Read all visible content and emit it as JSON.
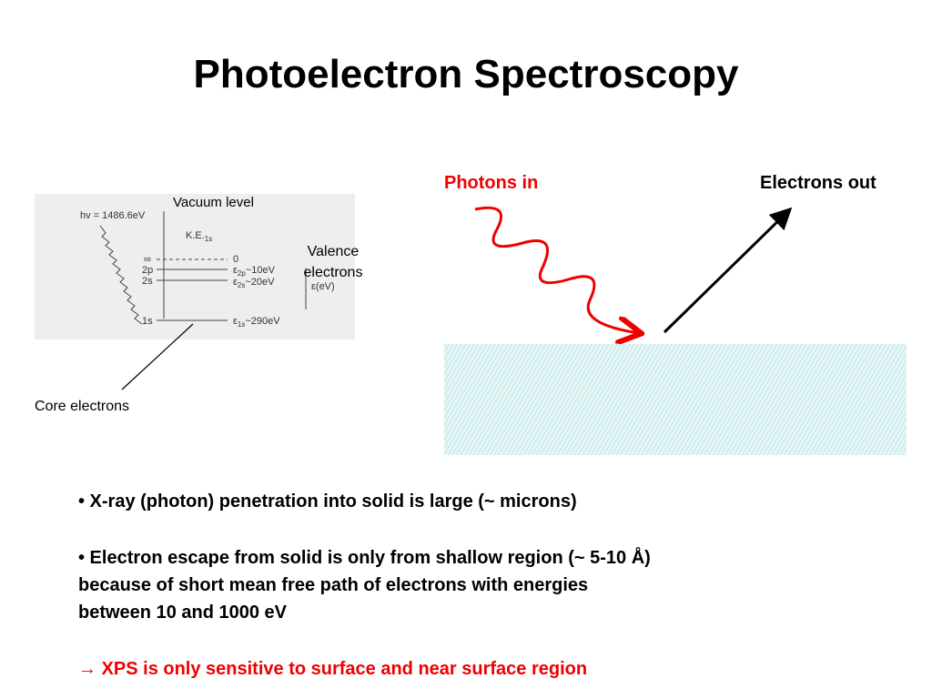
{
  "header": {
    "title": "Photoelectron Spectroscopy"
  },
  "diagram": {
    "photons_label": "Photons in",
    "electrons_label": "Electrons out",
    "vacuum_label": "Vacuum level",
    "valence_label": [
      "Valence",
      "electrons"
    ],
    "core_label": "Core electrons",
    "energy_levels": {
      "photon": "hv = 1486.6eV",
      "ke": {
        "text": "K.E.",
        "sub": "1s"
      },
      "infinity": "∞",
      "zero": "0",
      "axis": "ε(eV)",
      "levels": [
        {
          "name": "2p",
          "symbol": "ε",
          "sub": "2p",
          "text": "~10eV"
        },
        {
          "name": "2s",
          "symbol": "ε",
          "sub": "2s",
          "text": "~20eV"
        },
        {
          "name": "1s",
          "symbol": "ε",
          "sub": "1s",
          "text": "~290eV"
        }
      ]
    }
  },
  "bullets": [
    [
      "• X-ray (photon) penetration into solid is large (~ microns)"
    ],
    [
      "• Electron escape from solid is only from shallow region (~ 5-10 Å)",
      "because of short mean free path of electrons with energies",
      "between 10 and 1000 eV"
    ],
    [
      "→ XPS is only sensitive to surface and near surface region"
    ]
  ]
}
